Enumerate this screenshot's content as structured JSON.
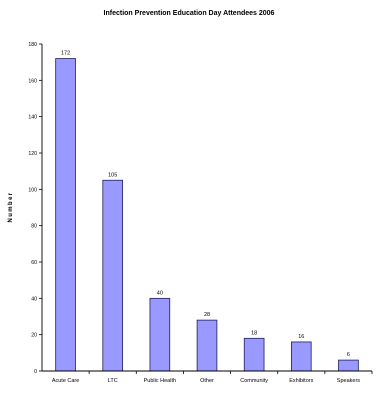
{
  "chart_data": {
    "type": "bar",
    "title": "Infection Prevention Education Day Attendees 2006",
    "xlabel": "",
    "ylabel": "Number",
    "categories": [
      "Acute Care",
      "LTC",
      "Public Health",
      "Other",
      "Community",
      "Exhibitors",
      "Speakers"
    ],
    "values": [
      172,
      105,
      40,
      28,
      18,
      16,
      6
    ],
    "ylim": [
      0,
      180
    ],
    "yticks": [
      0,
      20,
      40,
      60,
      80,
      100,
      120,
      140,
      160,
      180
    ],
    "data_labels": [
      "172",
      "105",
      "40",
      "28",
      "18",
      "16",
      "6"
    ],
    "grid": false,
    "legend": "none",
    "colors": {
      "bar_fill": "#9999ff",
      "bar_stroke": "#1f1f5c",
      "axis": "#000000",
      "background": "#ffffff"
    }
  }
}
